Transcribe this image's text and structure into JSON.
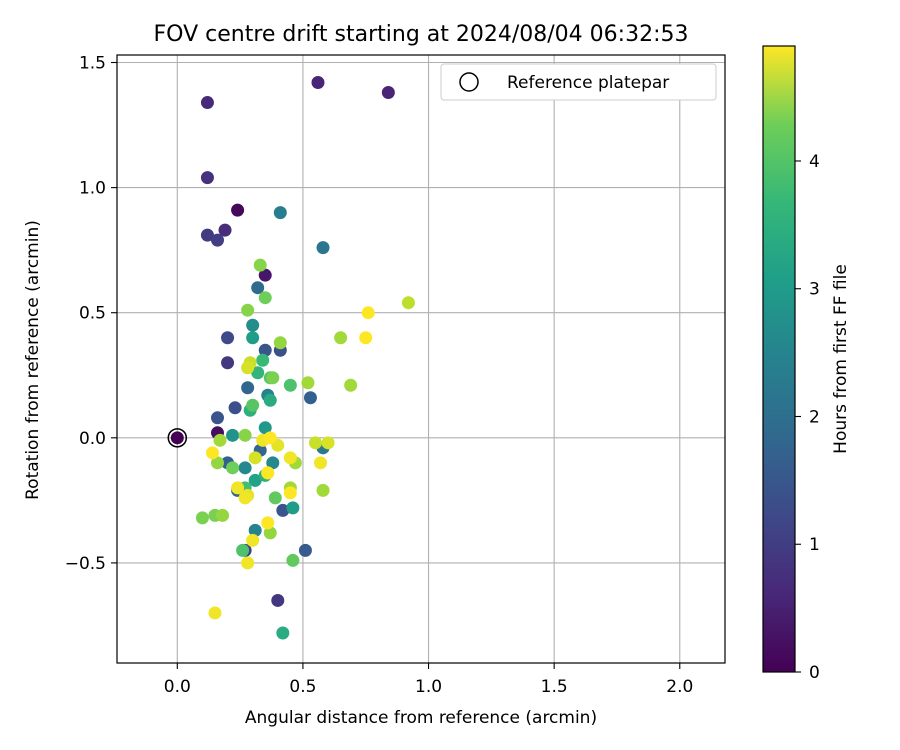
{
  "chart_data": {
    "type": "scatter",
    "title": "FOV centre drift starting at 2024/08/04 06:32:53",
    "xlabel": "Angular distance from reference (arcmin)",
    "ylabel": "Rotation from reference (arcmin)",
    "xlim": [
      -0.24,
      2.18
    ],
    "ylim": [
      -0.9,
      1.53
    ],
    "xticks": [
      0.0,
      0.5,
      1.0,
      1.5,
      2.0
    ],
    "xtick_labels": [
      "0.0",
      "0.5",
      "1.0",
      "1.5",
      "2.0"
    ],
    "yticks": [
      -0.5,
      0.0,
      0.5,
      1.0,
      1.5
    ],
    "ytick_labels": [
      "−0.5",
      "0.0",
      "0.5",
      "1.0",
      "1.5"
    ],
    "grid": true,
    "legend": {
      "placement": "top-right",
      "label": "Reference platepar"
    },
    "reference_point": {
      "x": 0.0,
      "y": 0.0
    },
    "colorbar": {
      "label": "Hours from first FF file",
      "range": [
        0,
        4.9
      ],
      "ticks": [
        0,
        1,
        2,
        3,
        4
      ],
      "tick_labels": [
        "0",
        "1",
        "2",
        "3",
        "4"
      ],
      "colormap": "viridis"
    },
    "points": [
      {
        "x": 0.0,
        "y": 0.0,
        "h": 0.0
      },
      {
        "x": 0.24,
        "y": 0.91,
        "h": 0.1
      },
      {
        "x": 0.35,
        "y": 0.65,
        "h": 0.3
      },
      {
        "x": 0.16,
        "y": 0.02,
        "h": 0.2
      },
      {
        "x": 0.56,
        "y": 1.42,
        "h": 0.5
      },
      {
        "x": 0.84,
        "y": 1.38,
        "h": 0.5
      },
      {
        "x": 0.12,
        "y": 1.34,
        "h": 0.6
      },
      {
        "x": 0.12,
        "y": 1.04,
        "h": 0.7
      },
      {
        "x": 0.19,
        "y": 0.83,
        "h": 0.65
      },
      {
        "x": 0.12,
        "y": 0.81,
        "h": 0.85
      },
      {
        "x": 0.16,
        "y": 0.79,
        "h": 0.9
      },
      {
        "x": 0.2,
        "y": 0.3,
        "h": 0.8
      },
      {
        "x": 0.4,
        "y": -0.65,
        "h": 0.8
      },
      {
        "x": 0.27,
        "y": -0.45,
        "h": 0.9
      },
      {
        "x": 0.2,
        "y": 0.4,
        "h": 1.1
      },
      {
        "x": 0.16,
        "y": 0.08,
        "h": 1.3
      },
      {
        "x": 0.23,
        "y": 0.12,
        "h": 1.2
      },
      {
        "x": 0.35,
        "y": 0.35,
        "h": 1.3
      },
      {
        "x": 0.41,
        "y": 0.35,
        "h": 1.2
      },
      {
        "x": 0.51,
        "y": -0.45,
        "h": 1.4
      },
      {
        "x": 0.53,
        "y": 0.16,
        "h": 1.5
      },
      {
        "x": 0.42,
        "y": -0.29,
        "h": 1.3
      },
      {
        "x": 0.2,
        "y": -0.1,
        "h": 1.5
      },
      {
        "x": 0.24,
        "y": -0.21,
        "h": 1.5
      },
      {
        "x": 0.32,
        "y": 0.6,
        "h": 1.7
      },
      {
        "x": 0.28,
        "y": 0.2,
        "h": 1.6
      },
      {
        "x": 0.33,
        "y": -0.05,
        "h": 1.6
      },
      {
        "x": 0.58,
        "y": 0.76,
        "h": 1.9
      },
      {
        "x": 0.41,
        "y": 0.9,
        "h": 2.1
      },
      {
        "x": 0.58,
        "y": -0.04,
        "h": 2.0
      },
      {
        "x": 0.31,
        "y": -0.37,
        "h": 2.2
      },
      {
        "x": 0.3,
        "y": 0.45,
        "h": 2.4
      },
      {
        "x": 0.27,
        "y": -0.12,
        "h": 2.3
      },
      {
        "x": 0.36,
        "y": 0.17,
        "h": 2.2
      },
      {
        "x": 0.38,
        "y": -0.1,
        "h": 2.3
      },
      {
        "x": 0.22,
        "y": 0.01,
        "h": 2.5
      },
      {
        "x": 0.3,
        "y": 0.4,
        "h": 2.7
      },
      {
        "x": 0.46,
        "y": -0.28,
        "h": 2.7
      },
      {
        "x": 0.35,
        "y": 0.04,
        "h": 2.6
      },
      {
        "x": 0.31,
        "y": -0.17,
        "h": 2.8
      },
      {
        "x": 0.42,
        "y": -0.78,
        "h": 3.0
      },
      {
        "x": 0.37,
        "y": 0.15,
        "h": 3.0
      },
      {
        "x": 0.29,
        "y": 0.11,
        "h": 3.1
      },
      {
        "x": 0.32,
        "y": 0.26,
        "h": 3.2
      },
      {
        "x": 0.34,
        "y": 0.31,
        "h": 3.3
      },
      {
        "x": 0.27,
        "y": -0.2,
        "h": 3.4
      },
      {
        "x": 0.35,
        "y": -0.15,
        "h": 3.1
      },
      {
        "x": 0.26,
        "y": -0.45,
        "h": 3.5
      },
      {
        "x": 0.37,
        "y": 0.24,
        "h": 3.6
      },
      {
        "x": 0.3,
        "y": 0.13,
        "h": 3.6
      },
      {
        "x": 0.45,
        "y": 0.21,
        "h": 3.5
      },
      {
        "x": 0.39,
        "y": -0.24,
        "h": 3.7
      },
      {
        "x": 0.46,
        "y": -0.49,
        "h": 3.7
      },
      {
        "x": 0.22,
        "y": -0.12,
        "h": 3.8
      },
      {
        "x": 0.35,
        "y": 0.56,
        "h": 3.8
      },
      {
        "x": 0.28,
        "y": 0.51,
        "h": 4.0
      },
      {
        "x": 0.33,
        "y": 0.69,
        "h": 4.0
      },
      {
        "x": 0.41,
        "y": 0.38,
        "h": 4.1
      },
      {
        "x": 0.38,
        "y": 0.24,
        "h": 3.9
      },
      {
        "x": 0.27,
        "y": 0.01,
        "h": 4.0
      },
      {
        "x": 0.15,
        "y": -0.31,
        "h": 3.9
      },
      {
        "x": 0.1,
        "y": -0.32,
        "h": 3.9
      },
      {
        "x": 0.65,
        "y": 0.4,
        "h": 4.2
      },
      {
        "x": 0.69,
        "y": 0.21,
        "h": 4.2
      },
      {
        "x": 0.52,
        "y": 0.22,
        "h": 4.2
      },
      {
        "x": 0.58,
        "y": -0.21,
        "h": 4.2
      },
      {
        "x": 0.47,
        "y": -0.1,
        "h": 4.2
      },
      {
        "x": 0.17,
        "y": -0.01,
        "h": 4.2
      },
      {
        "x": 0.16,
        "y": -0.1,
        "h": 4.1
      },
      {
        "x": 0.18,
        "y": -0.31,
        "h": 4.1
      },
      {
        "x": 0.37,
        "y": -0.38,
        "h": 4.1
      },
      {
        "x": 0.45,
        "y": -0.2,
        "h": 4.2
      },
      {
        "x": 0.92,
        "y": 0.54,
        "h": 4.4
      },
      {
        "x": 0.29,
        "y": 0.3,
        "h": 4.5
      },
      {
        "x": 0.28,
        "y": 0.28,
        "h": 4.6
      },
      {
        "x": 0.55,
        "y": -0.02,
        "h": 4.5
      },
      {
        "x": 0.6,
        "y": -0.02,
        "h": 4.6
      },
      {
        "x": 0.4,
        "y": -0.03,
        "h": 4.7
      },
      {
        "x": 0.36,
        "y": -0.14,
        "h": 4.6
      },
      {
        "x": 0.31,
        "y": -0.08,
        "h": 4.6
      },
      {
        "x": 0.28,
        "y": -0.23,
        "h": 4.7
      },
      {
        "x": 0.76,
        "y": 0.5,
        "h": 4.9
      },
      {
        "x": 0.75,
        "y": 0.4,
        "h": 4.9
      },
      {
        "x": 0.14,
        "y": -0.06,
        "h": 4.9
      },
      {
        "x": 0.34,
        "y": -0.01,
        "h": 4.8
      },
      {
        "x": 0.37,
        "y": 0.0,
        "h": 4.9
      },
      {
        "x": 0.36,
        "y": -0.14,
        "h": 4.9
      },
      {
        "x": 0.45,
        "y": -0.08,
        "h": 4.8
      },
      {
        "x": 0.57,
        "y": -0.1,
        "h": 4.8
      },
      {
        "x": 0.24,
        "y": -0.2,
        "h": 4.8
      },
      {
        "x": 0.27,
        "y": -0.24,
        "h": 4.8
      },
      {
        "x": 0.45,
        "y": -0.22,
        "h": 4.9
      },
      {
        "x": 0.36,
        "y": -0.34,
        "h": 4.9
      },
      {
        "x": 0.3,
        "y": -0.41,
        "h": 4.8
      },
      {
        "x": 0.28,
        "y": -0.5,
        "h": 4.8
      },
      {
        "x": 0.15,
        "y": -0.7,
        "h": 4.8
      }
    ]
  }
}
